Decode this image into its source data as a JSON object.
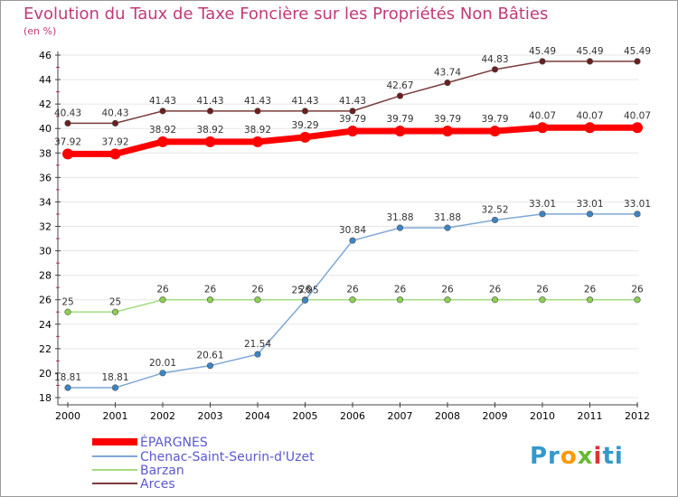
{
  "chart_data": {
    "type": "line",
    "title": "Evolution du Taux de Taxe Foncière sur les Propriétés Non Bâties",
    "ylabel": "(en %)",
    "xlabel": "",
    "x": [
      "2000",
      "2001",
      "2002",
      "2003",
      "2004",
      "2005",
      "2006",
      "2007",
      "2008",
      "2009",
      "2010",
      "2011",
      "2012"
    ],
    "ylim": [
      18,
      46
    ],
    "yticks": [
      "18",
      "20",
      "22",
      "24",
      "26",
      "28",
      "30",
      "32",
      "34",
      "36",
      "38",
      "40",
      "42",
      "44",
      "46"
    ],
    "series": [
      {
        "name": "ÉPARGNES",
        "color": "#ff0000",
        "marker": "#ff0000",
        "values": [
          37.92,
          37.92,
          38.92,
          38.92,
          38.92,
          39.29,
          39.79,
          39.79,
          39.79,
          39.79,
          40.07,
          40.07,
          40.07
        ],
        "labels": [
          "37.92",
          "37.92",
          "38.92",
          "38.92",
          "38.92",
          "39.29",
          "39.79",
          "39.79",
          "39.79",
          "39.79",
          "40.07",
          "40.07",
          "40.07"
        ]
      },
      {
        "name": "Chenac-Saint-Seurin-d'Uzet",
        "color": "#7fa7d4",
        "marker": "#3b85c6",
        "values": [
          18.81,
          18.81,
          20.01,
          20.61,
          21.54,
          25.95,
          30.84,
          31.88,
          31.88,
          32.52,
          33.01,
          33.01,
          33.01
        ],
        "labels": [
          "18.81",
          "18.81",
          "20.01",
          "20.61",
          "21.54",
          "25.95",
          "30.84",
          "31.88",
          "31.88",
          "32.52",
          "33.01",
          "33.01",
          "33.01"
        ]
      },
      {
        "name": "Barzan",
        "color": "#a4dc80",
        "marker": "#8ad14f",
        "values": [
          25,
          25,
          26,
          26,
          26,
          26,
          26,
          26,
          26,
          26,
          26,
          26,
          26
        ],
        "labels": [
          "25",
          "25",
          "26",
          "26",
          "26",
          "26",
          "26",
          "26",
          "26",
          "26",
          "26",
          "26",
          "26"
        ]
      },
      {
        "name": "Arces",
        "color": "#7a3b3b",
        "marker": "#6b1e1e",
        "values": [
          40.43,
          40.43,
          41.43,
          41.43,
          41.43,
          41.43,
          41.43,
          42.67,
          43.74,
          44.83,
          45.49,
          45.49,
          45.49
        ],
        "labels": [
          "40.43",
          "40.43",
          "41.43",
          "41.43",
          "41.43",
          "41.43",
          "41.43",
          "42.67",
          "43.74",
          "44.83",
          "45.49",
          "45.49",
          "45.49"
        ]
      }
    ]
  },
  "logo": {
    "parts": [
      "Pr",
      "o",
      "x",
      "i",
      "ti"
    ],
    "colors": [
      "#3399cc",
      "#ff9900",
      "#66bb33",
      "#dd3333",
      "#3399cc"
    ]
  }
}
